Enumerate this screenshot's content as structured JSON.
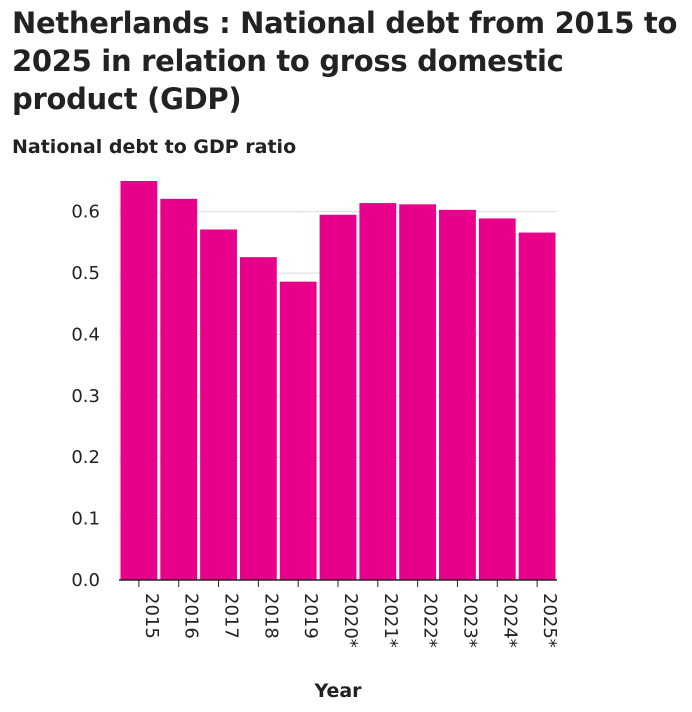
{
  "chart_data": {
    "type": "bar",
    "title": "Netherlands : National debt from 2015 to 2025 in relation to gross domestic product (GDP)",
    "ylabel": "National debt to GDP ratio",
    "xlabel": "Year",
    "categories": [
      "2015",
      "2016",
      "2017",
      "2018",
      "2019",
      "2020*",
      "2021*",
      "2022*",
      "2023*",
      "2024*",
      "2025*"
    ],
    "values": [
      0.65,
      0.621,
      0.571,
      0.526,
      0.486,
      0.595,
      0.614,
      0.612,
      0.603,
      0.589,
      0.566
    ],
    "ylim": [
      0,
      0.65
    ],
    "yticks": [
      "0.0",
      "0.1",
      "0.2",
      "0.3",
      "0.4",
      "0.5",
      "0.6"
    ],
    "grid": true,
    "bar_color": "#e8008a"
  }
}
